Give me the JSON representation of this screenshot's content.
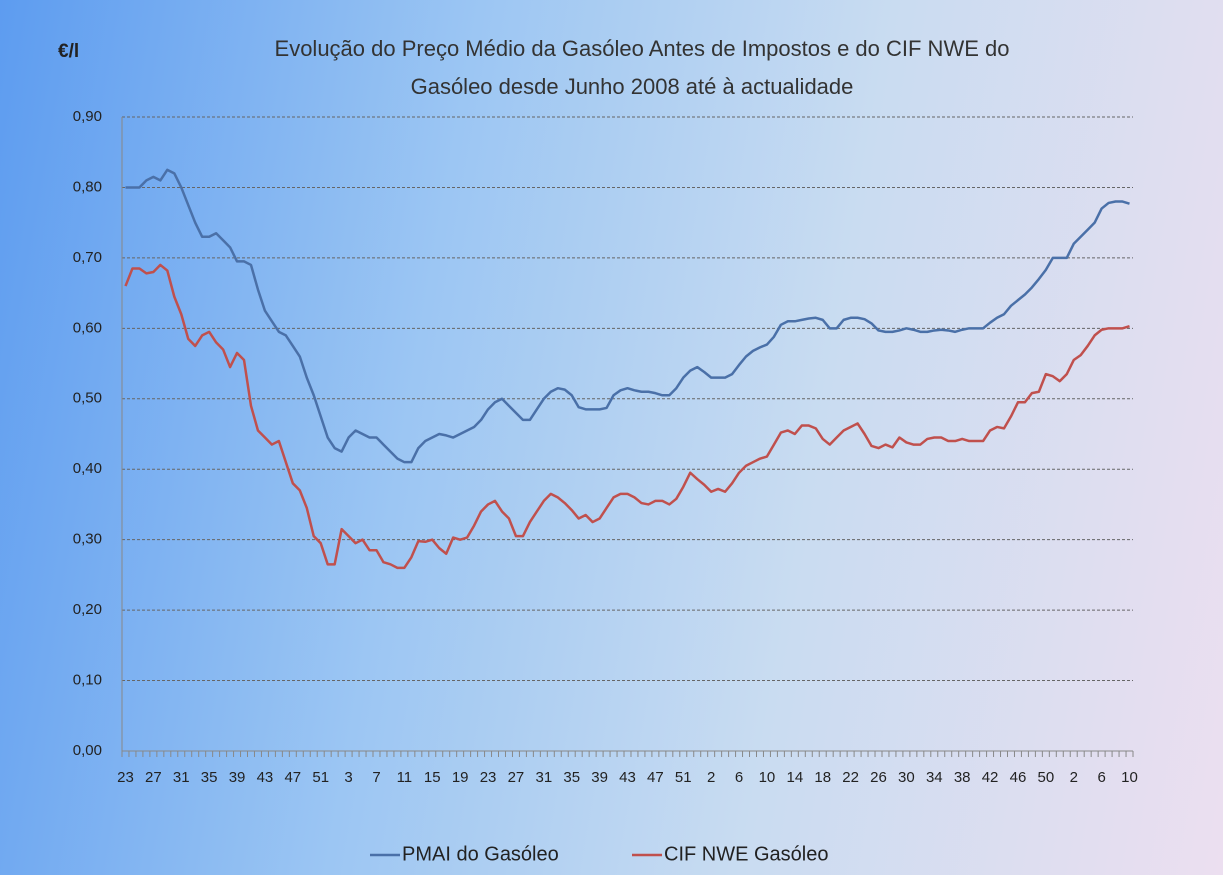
{
  "chart_data": {
    "type": "line",
    "title": [
      "Evolução do Preço Médio da Gasóleo Antes de Impostos e do CIF NWE do",
      "Gasóleo desde Junho 2008 até à actualidade"
    ],
    "y_label": "€/l",
    "categories": [
      "23",
      null,
      null,
      null,
      "27",
      null,
      null,
      null,
      "31",
      null,
      null,
      null,
      "35",
      null,
      null,
      null,
      "39",
      null,
      null,
      null,
      "43",
      null,
      null,
      null,
      "47",
      null,
      null,
      null,
      "51",
      null,
      null,
      null,
      "3",
      null,
      null,
      null,
      "7",
      null,
      null,
      null,
      "11",
      null,
      null,
      null,
      "15",
      null,
      null,
      null,
      "19",
      null,
      null,
      null,
      "23",
      null,
      null,
      null,
      "27",
      null,
      null,
      null,
      "31",
      null,
      null,
      null,
      "35",
      null,
      null,
      null,
      "39",
      null,
      null,
      null,
      "43",
      null,
      null,
      null,
      "47",
      null,
      null,
      null,
      "51",
      null,
      null,
      null,
      "2",
      null,
      null,
      null,
      "6",
      null,
      null,
      null,
      "10",
      null,
      null,
      null,
      "14",
      null,
      null,
      null,
      "18",
      null,
      null,
      null,
      "22",
      null,
      null,
      null,
      "26",
      null,
      null,
      null,
      "30",
      null,
      null,
      null,
      "34",
      null,
      null,
      null,
      "38",
      null,
      null,
      null,
      "42",
      null,
      null,
      null,
      "46",
      null,
      null,
      null,
      "50",
      null,
      null,
      null,
      "2",
      null,
      null,
      null,
      "6",
      null,
      null,
      null,
      "10"
    ],
    "series": [
      {
        "name": "PMAI do Gasóleo",
        "color": "#4a70a8",
        "values": [
          0.8,
          0.8,
          0.8,
          0.81,
          0.815,
          0.81,
          0.825,
          0.82,
          0.8,
          0.775,
          0.75,
          0.73,
          0.73,
          0.735,
          0.725,
          0.715,
          0.695,
          0.695,
          0.69,
          0.655,
          0.625,
          0.61,
          0.595,
          0.59,
          0.575,
          0.56,
          0.53,
          0.505,
          0.475,
          0.445,
          0.43,
          0.425,
          0.445,
          0.455,
          0.45,
          0.445,
          0.445,
          0.435,
          0.425,
          0.415,
          0.41,
          0.41,
          0.43,
          0.44,
          0.445,
          0.45,
          0.448,
          0.445,
          0.45,
          0.455,
          0.46,
          0.47,
          0.485,
          0.495,
          0.5,
          0.49,
          0.48,
          0.47,
          0.47,
          0.485,
          0.5,
          0.51,
          0.515,
          0.513,
          0.505,
          0.488,
          0.485,
          0.485,
          0.485,
          0.487,
          0.505,
          0.512,
          0.515,
          0.512,
          0.51,
          0.51,
          0.508,
          0.505,
          0.505,
          0.515,
          0.53,
          0.54,
          0.545,
          0.538,
          0.53,
          0.53,
          0.53,
          0.535,
          0.548,
          0.56,
          0.568,
          0.573,
          0.577,
          0.588,
          0.605,
          0.61,
          0.61,
          0.612,
          0.614,
          0.615,
          0.612,
          0.6,
          0.6,
          0.612,
          0.615,
          0.615,
          0.613,
          0.607,
          0.597,
          0.595,
          0.595,
          0.597,
          0.6,
          0.598,
          0.595,
          0.595,
          0.597,
          0.598,
          0.597,
          0.595,
          0.598,
          0.6,
          0.6,
          0.6,
          0.608,
          0.615,
          0.62,
          0.632,
          0.64,
          0.648,
          0.658,
          0.67,
          0.683,
          0.7,
          0.7,
          0.7,
          0.72,
          0.73,
          0.74,
          0.75,
          0.77,
          0.778,
          0.78,
          0.78,
          0.777
        ]
      },
      {
        "name": "CIF NWE Gasóleo",
        "color": "#c0504d",
        "values": [
          0.66,
          0.685,
          0.685,
          0.678,
          0.68,
          0.69,
          0.682,
          0.645,
          0.62,
          0.585,
          0.575,
          0.59,
          0.595,
          0.58,
          0.57,
          0.545,
          0.565,
          0.555,
          0.49,
          0.455,
          0.445,
          0.435,
          0.44,
          0.41,
          0.38,
          0.37,
          0.345,
          0.305,
          0.295,
          0.265,
          0.265,
          0.315,
          0.305,
          0.295,
          0.3,
          0.285,
          0.285,
          0.268,
          0.265,
          0.26,
          0.26,
          0.275,
          0.298,
          0.297,
          0.3,
          0.288,
          0.28,
          0.303,
          0.3,
          0.303,
          0.32,
          0.34,
          0.35,
          0.355,
          0.34,
          0.33,
          0.305,
          0.305,
          0.325,
          0.34,
          0.355,
          0.365,
          0.36,
          0.352,
          0.342,
          0.33,
          0.335,
          0.325,
          0.33,
          0.345,
          0.36,
          0.365,
          0.365,
          0.36,
          0.352,
          0.35,
          0.355,
          0.355,
          0.35,
          0.358,
          0.375,
          0.395,
          0.386,
          0.378,
          0.368,
          0.372,
          0.368,
          0.38,
          0.395,
          0.405,
          0.41,
          0.415,
          0.418,
          0.435,
          0.452,
          0.455,
          0.45,
          0.462,
          0.462,
          0.458,
          0.443,
          0.435,
          0.445,
          0.455,
          0.46,
          0.465,
          0.45,
          0.433,
          0.43,
          0.435,
          0.431,
          0.445,
          0.438,
          0.435,
          0.435,
          0.443,
          0.445,
          0.445,
          0.44,
          0.44,
          0.443,
          0.44,
          0.44,
          0.44,
          0.455,
          0.46,
          0.458,
          0.475,
          0.495,
          0.495,
          0.508,
          0.51,
          0.535,
          0.532,
          0.525,
          0.535,
          0.555,
          0.562,
          0.575,
          0.59,
          0.598,
          0.6,
          0.6,
          0.6,
          0.603
        ]
      }
    ],
    "ylim": [
      0,
      0.9
    ],
    "yticks": [
      {
        "value": 0,
        "label": "0,00"
      },
      {
        "value": 0.1,
        "label": "0,10"
      },
      {
        "value": 0.2,
        "label": "0,20"
      },
      {
        "value": 0.3,
        "label": "0,30"
      },
      {
        "value": 0.4,
        "label": "0,40"
      },
      {
        "value": 0.5,
        "label": "0,50"
      },
      {
        "value": 0.6,
        "label": "0,60"
      },
      {
        "value": 0.7,
        "label": "0,70"
      },
      {
        "value": 0.8,
        "label": "0,80"
      },
      {
        "value": 0.9,
        "label": "0,90"
      }
    ],
    "grid": true,
    "legend": "bottom"
  }
}
